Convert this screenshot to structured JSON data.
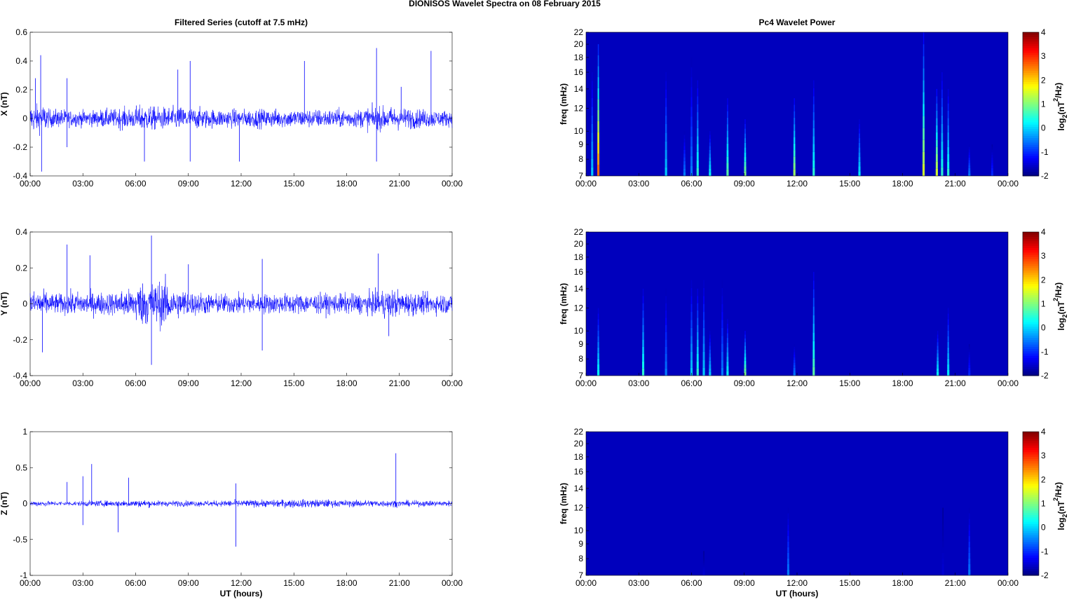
{
  "chart_data": {
    "type": "multi-panel",
    "title": "DIONISOS Wavelet Spectra on 08 February  2015",
    "left_title": "Filtered Series (cutoff at 7.5 mHz)",
    "right_title": "Pc4 Wavelet Power",
    "xlabel": "UT (hours)",
    "x_tick_labels": [
      "00:00",
      "03:00",
      "06:00",
      "09:00",
      "12:00",
      "15:00",
      "18:00",
      "21:00",
      "00:00"
    ],
    "xlim_hours": [
      0,
      24
    ],
    "series_color": "#0000ff",
    "panels": [
      {
        "component": "X",
        "ylabel": "X (nT)",
        "ylim": [
          -0.4,
          0.6
        ],
        "yticks": [
          -0.4,
          -0.2,
          0,
          0.2,
          0.4,
          0.6
        ],
        "ytick_labels": [
          "-0.4",
          "-0.2",
          "0",
          "0.2",
          "0.4",
          "0.6"
        ],
        "hourly_amplitude": [
          0.12,
          0.08,
          0.07,
          0.07,
          0.08,
          0.09,
          0.11,
          0.1,
          0.1,
          0.09,
          0.08,
          0.08,
          0.08,
          0.08,
          0.08,
          0.08,
          0.08,
          0.08,
          0.08,
          0.1,
          0.1,
          0.09,
          0.08,
          0.07
        ],
        "spikes": [
          [
            0.6,
            0.44
          ],
          [
            0.65,
            -0.37
          ],
          [
            0.3,
            0.28
          ],
          [
            2.1,
            0.28
          ],
          [
            2.1,
            -0.2
          ],
          [
            8.4,
            0.34
          ],
          [
            9.1,
            0.4
          ],
          [
            9.1,
            -0.3
          ],
          [
            11.9,
            -0.3
          ],
          [
            15.6,
            0.4
          ],
          [
            19.7,
            0.49
          ],
          [
            19.7,
            -0.3
          ],
          [
            22.8,
            0.47
          ],
          [
            21.1,
            0.22
          ],
          [
            6.5,
            -0.3
          ]
        ],
        "wavelet_events": [
          [
            0.35,
            16,
            0
          ],
          [
            0.7,
            20,
            2.6
          ],
          [
            4.55,
            16,
            0
          ],
          [
            5.6,
            10,
            -0.5
          ],
          [
            6.0,
            18,
            -0.5
          ],
          [
            6.35,
            15,
            0.5
          ],
          [
            7.05,
            10,
            0.3
          ],
          [
            8.05,
            13,
            0.8
          ],
          [
            9.05,
            11,
            1
          ],
          [
            11.85,
            13,
            1.2
          ],
          [
            12.95,
            15,
            0.5
          ],
          [
            15.55,
            11,
            0.2
          ],
          [
            19.2,
            22,
            1.5
          ],
          [
            19.95,
            14,
            1.5
          ],
          [
            20.25,
            16,
            0.5
          ],
          [
            20.6,
            14,
            0.5
          ],
          [
            21.8,
            9,
            -0.5
          ],
          [
            23.1,
            9,
            -1
          ]
        ]
      },
      {
        "component": "Y",
        "ylabel": "Y (nT)",
        "ylim": [
          -0.4,
          0.4
        ],
        "yticks": [
          -0.4,
          -0.2,
          0,
          0.2,
          0.4
        ],
        "ytick_labels": [
          "-0.4",
          "-0.2",
          "0",
          "0.2",
          "0.4"
        ],
        "hourly_amplitude": [
          0.09,
          0.07,
          0.08,
          0.08,
          0.08,
          0.1,
          0.15,
          0.16,
          0.1,
          0.08,
          0.07,
          0.07,
          0.07,
          0.07,
          0.07,
          0.07,
          0.07,
          0.07,
          0.07,
          0.08,
          0.1,
          0.08,
          0.07,
          0.07
        ],
        "spikes": [
          [
            0.7,
            -0.27
          ],
          [
            2.1,
            0.33
          ],
          [
            3.4,
            0.27
          ],
          [
            6.9,
            0.38
          ],
          [
            6.9,
            -0.34
          ],
          [
            9.0,
            0.22
          ],
          [
            13.2,
            0.25
          ],
          [
            13.2,
            -0.26
          ],
          [
            19.8,
            0.28
          ],
          [
            20.4,
            -0.18
          ]
        ],
        "wavelet_events": [
          [
            0.7,
            12,
            0.3
          ],
          [
            3.25,
            14,
            0.5
          ],
          [
            4.55,
            14,
            -0.5
          ],
          [
            6.0,
            15,
            0
          ],
          [
            6.35,
            14,
            0.5
          ],
          [
            6.7,
            15,
            0
          ],
          [
            7.05,
            10,
            0
          ],
          [
            7.75,
            15,
            -0.5
          ],
          [
            8.05,
            11,
            0.3
          ],
          [
            9.05,
            10,
            1
          ],
          [
            11.85,
            9,
            -0.5
          ],
          [
            12.95,
            16,
            0.8
          ],
          [
            20.0,
            10,
            0.3
          ],
          [
            20.6,
            12,
            0.2
          ],
          [
            21.8,
            9,
            -1
          ]
        ]
      },
      {
        "component": "Z",
        "ylabel": "Z (nT)",
        "ylim": [
          -1,
          1
        ],
        "yticks": [
          -1,
          -0.5,
          0,
          0.5,
          1
        ],
        "ytick_labels": [
          "-1",
          "-0.5",
          "0",
          "0.5",
          "1"
        ],
        "hourly_amplitude": [
          0.05,
          0.04,
          0.04,
          0.05,
          0.05,
          0.06,
          0.06,
          0.05,
          0.05,
          0.05,
          0.05,
          0.06,
          0.06,
          0.06,
          0.07,
          0.07,
          0.07,
          0.06,
          0.06,
          0.06,
          0.06,
          0.05,
          0.05,
          0.05
        ],
        "spikes": [
          [
            2.1,
            0.3
          ],
          [
            3.0,
            0.38
          ],
          [
            3.5,
            0.55
          ],
          [
            5.0,
            -0.4
          ],
          [
            5.6,
            0.36
          ],
          [
            11.7,
            0.28
          ],
          [
            11.7,
            -0.6
          ],
          [
            20.8,
            0.7
          ],
          [
            3.0,
            -0.3
          ]
        ],
        "wavelet_events": [
          [
            11.5,
            12,
            -0.5
          ],
          [
            21.8,
            12,
            -0.5
          ],
          [
            6.7,
            8.5,
            -1.5
          ],
          [
            20.3,
            12,
            -1.5
          ]
        ]
      }
    ],
    "freq_axis": {
      "ylabel": "freq (mHz)",
      "ylim": [
        7,
        22
      ],
      "scale": "log",
      "yticks": [
        7,
        8,
        9,
        10,
        12,
        14,
        16,
        18,
        20,
        22
      ],
      "ytick_labels": [
        "7",
        "8",
        "9",
        "10",
        "12",
        "14",
        "16",
        "18",
        "20",
        "22"
      ]
    },
    "colorbar": {
      "label": "log2(nT2/Hz)",
      "label_base": "log",
      "label_sub": "2",
      "label_mid": "(nT",
      "label_sup": "2",
      "label_end": "/Hz)",
      "clim": [
        -2,
        4
      ],
      "ticks": [
        -2,
        -1,
        0,
        1,
        2,
        3,
        4
      ],
      "tick_labels": [
        "-2",
        "-1",
        "0",
        "1",
        "2",
        "3",
        "4"
      ],
      "colormap": "jet"
    }
  }
}
